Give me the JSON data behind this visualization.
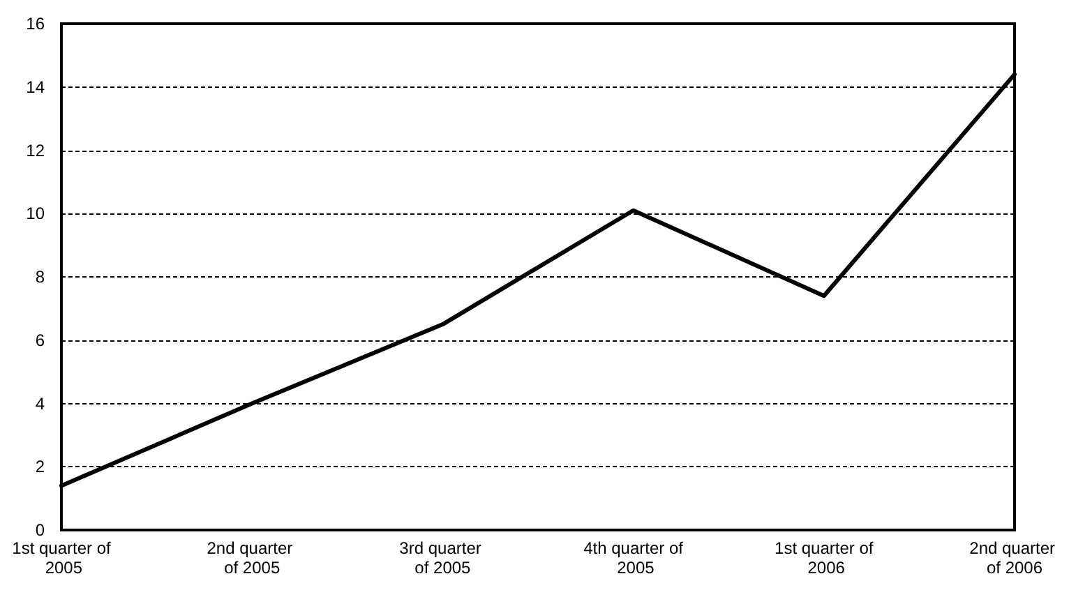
{
  "chart_data": {
    "type": "line",
    "categories": [
      "1st quarter of 2005",
      "2nd quarter of 2005",
      "3rd quarter of 2005",
      "4th quarter of 2005",
      "1st quarter of 2006",
      "2nd quarter of 2006"
    ],
    "series": [
      {
        "color": "#000000",
        "values": [
          1.4,
          4.0,
          6.5,
          10.1,
          7.4,
          14.4
        ]
      }
    ],
    "ylim": [
      0,
      16
    ],
    "yticks": [
      0,
      2,
      4,
      6,
      8,
      10,
      12,
      14,
      16
    ],
    "grid": "y",
    "marker": "none",
    "line_style": "solid"
  }
}
